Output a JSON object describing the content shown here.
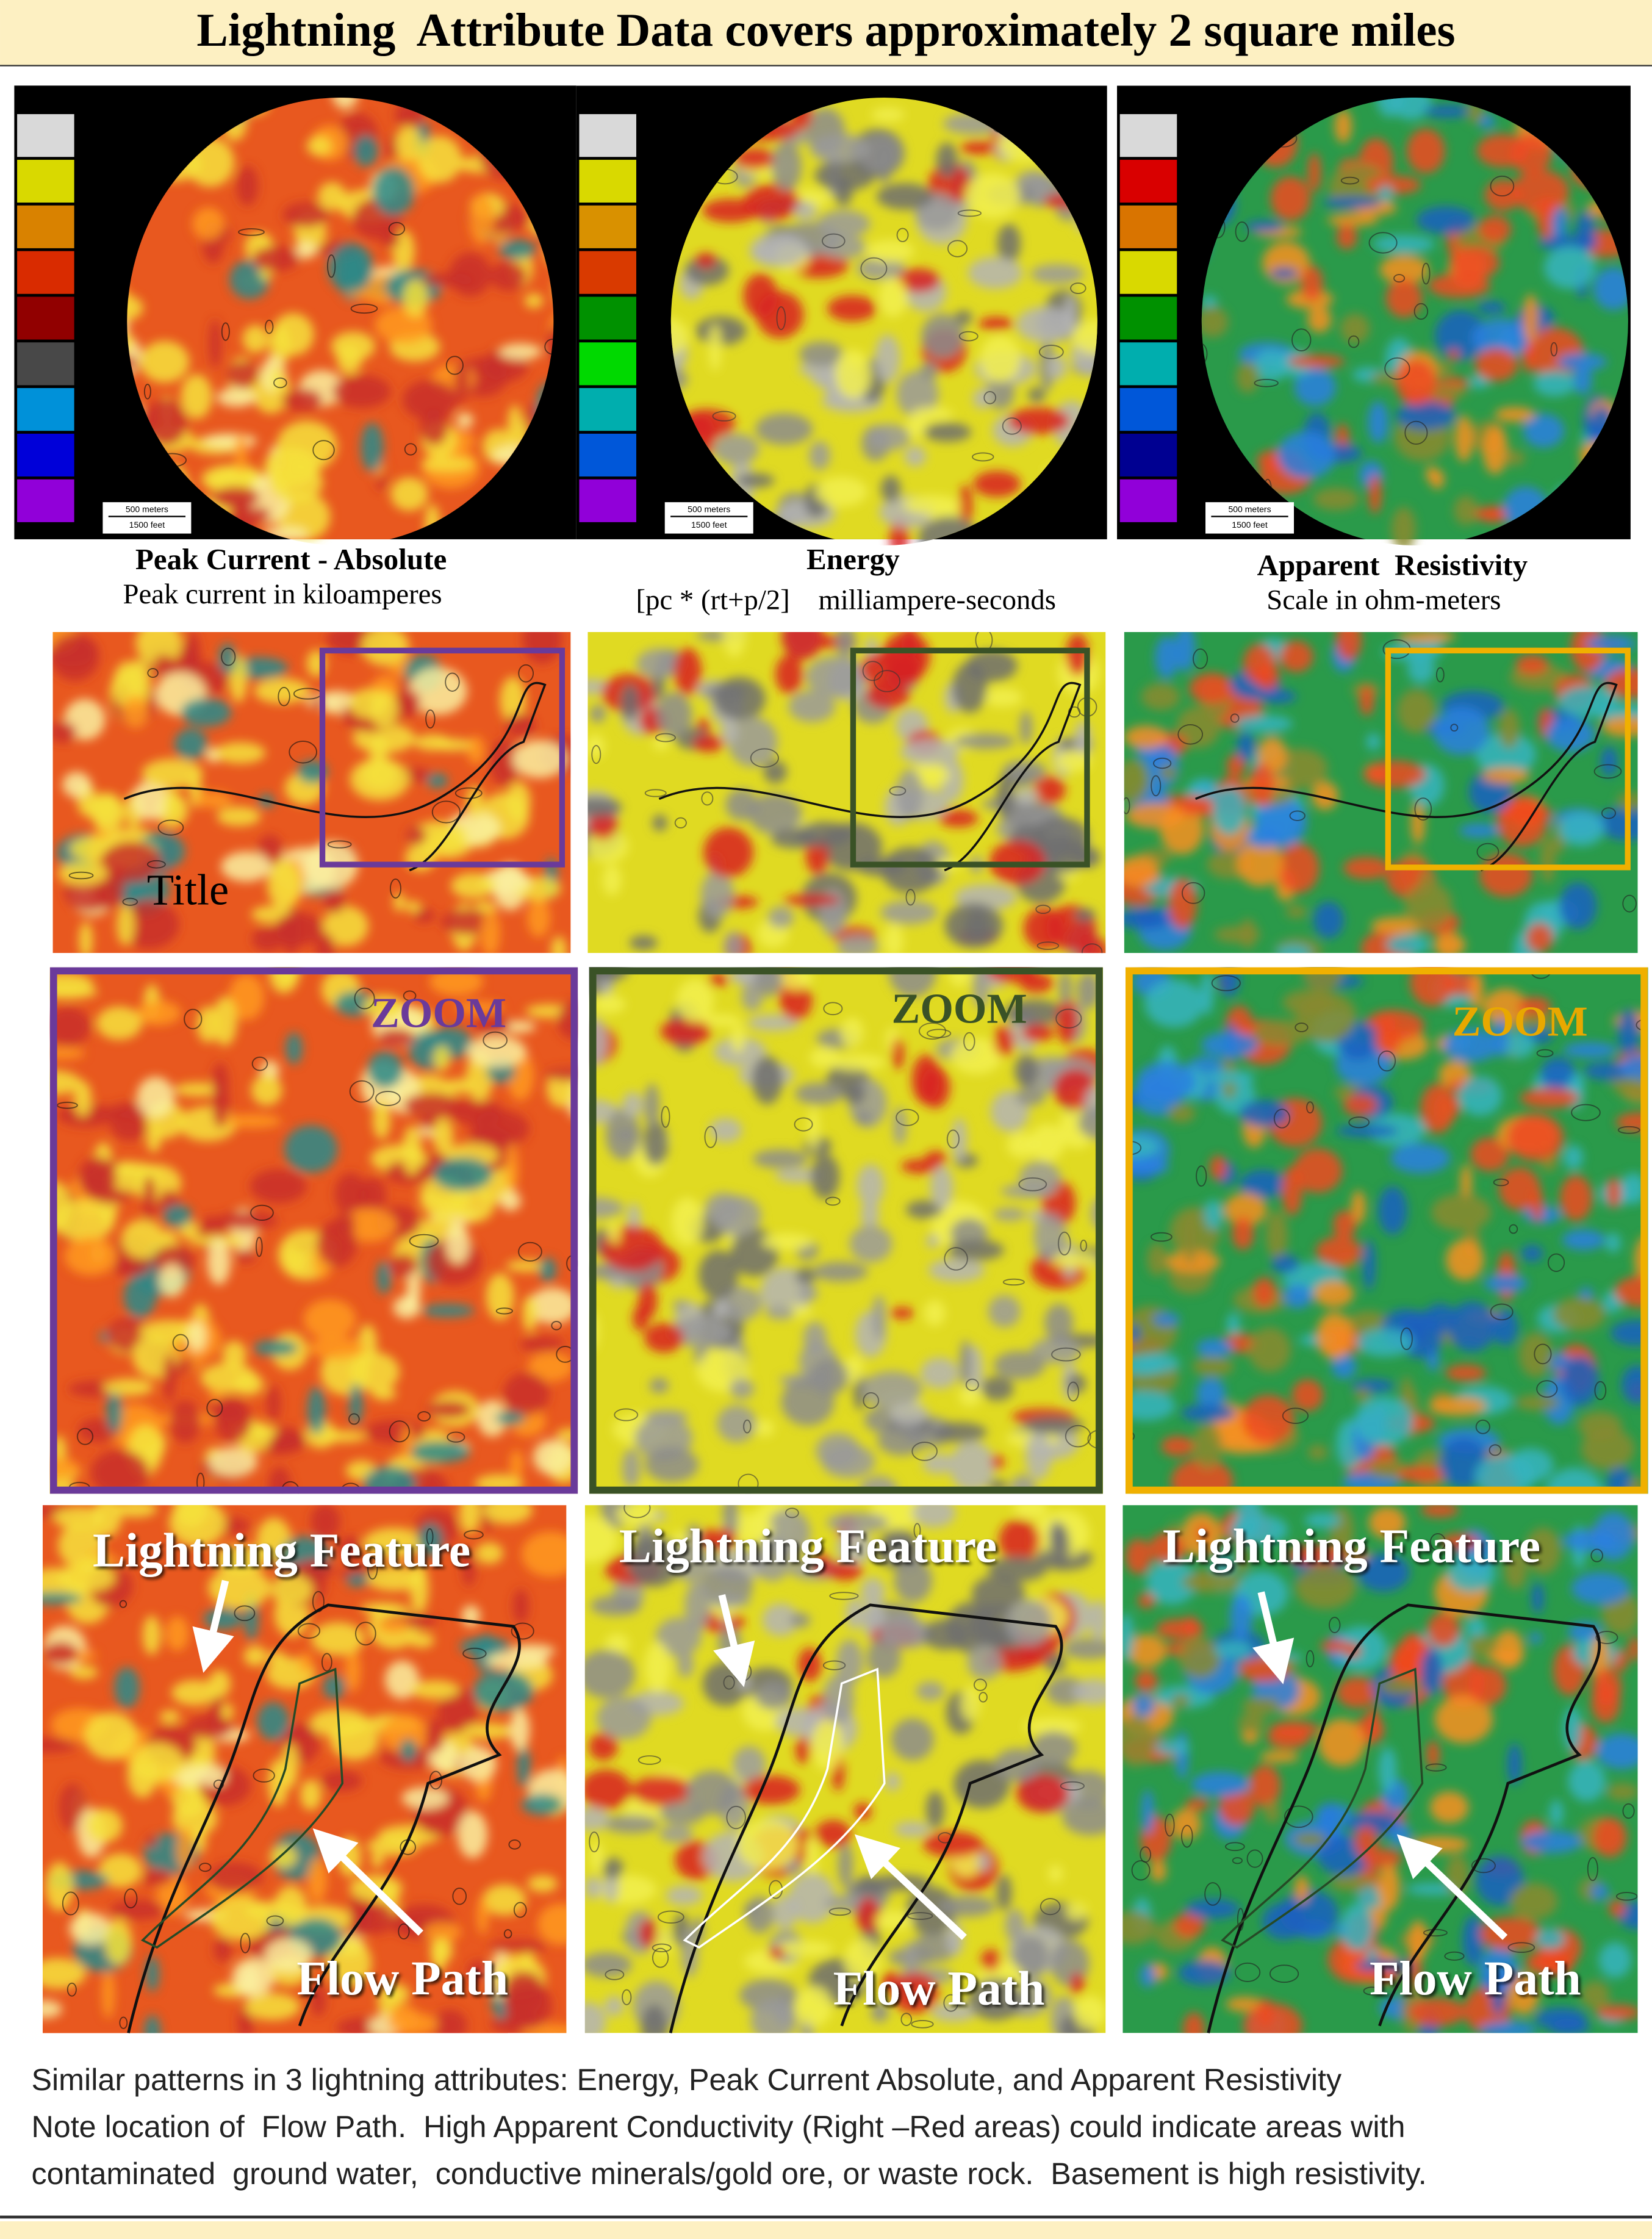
{
  "header": {
    "title": "Lightning  Attribute Data covers approximately 2 square miles"
  },
  "panels": [
    {
      "name": "Peak Current - Absolute",
      "subtitle": "Peak current in kiloamperes",
      "scale_bar": [
        "500 meters",
        "1500 feet"
      ]
    },
    {
      "name": "Energy",
      "subtitle": "[pc * (rt+p/2]    milliampere-seconds",
      "scale_bar": [
        "500 meters",
        "1500 feet"
      ]
    },
    {
      "name": "Apparent  Resistivity",
      "subtitle": "Scale in ohm-meters",
      "scale_bar": [
        "500 meters",
        "1500 feet"
      ]
    }
  ],
  "overview_label": "Title",
  "zoom_labels": [
    "ZOOM",
    "ZOOM",
    "ZOOM"
  ],
  "annotations": [
    {
      "feature": "Lightning Feature",
      "flow": "Flow Path"
    },
    {
      "feature": "Lightning Feature",
      "flow": "Flow Path"
    },
    {
      "feature": "Lightning Feature",
      "flow": "Flow Path"
    }
  ],
  "caption": [
    "Similar patterns in 3 lightning attributes: Energy, Peak Current Absolute, and Apparent Resistivity",
    "Note location of  Flow Path.  High Apparent Conductivity (Right –Red areas) could indicate areas with",
    "contaminated  ground water,  conductive minerals/gold ore, or waste rock.  Basement is high resistivity."
  ]
}
